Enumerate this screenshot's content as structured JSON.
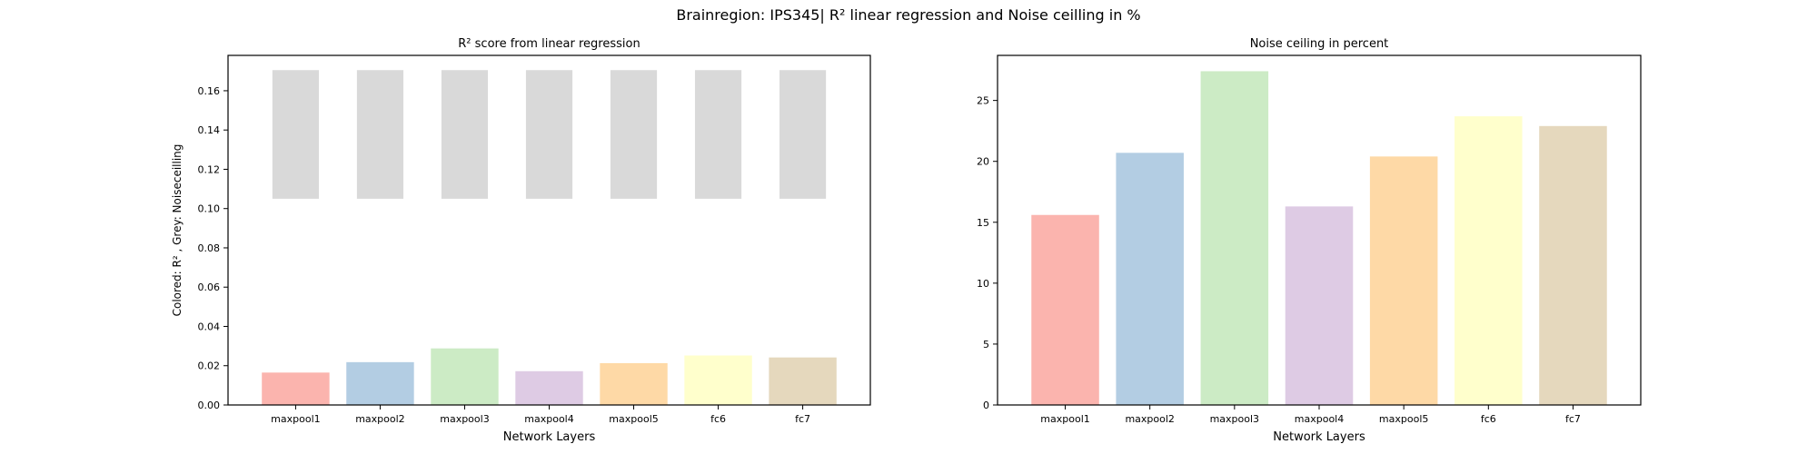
{
  "figure": {
    "suptitle": "Brainregion: IPS345| R² linear regression and Noise ceilling in %"
  },
  "chart_data": [
    {
      "type": "bar",
      "title": "R² score from linear regression",
      "xlabel": "Network Layers",
      "ylabel": "Colored: R² , Grey: Noiseceilling",
      "categories": [
        "maxpool1",
        "maxpool2",
        "maxpool3",
        "maxpool4",
        "maxpool5",
        "fc6",
        "fc7"
      ],
      "ylim": [
        0,
        0.178
      ],
      "yticks": [
        0.0,
        0.02,
        0.04,
        0.06,
        0.08,
        0.1,
        0.12,
        0.14,
        0.16
      ],
      "ytick_labels": [
        "0.00",
        "0.02",
        "0.04",
        "0.06",
        "0.08",
        "0.10",
        "0.12",
        "0.14",
        "0.16"
      ],
      "series": [
        {
          "values": [
            0.0165,
            0.0218,
            0.0288,
            0.0172,
            0.0213,
            0.0252,
            0.0242
          ]
        }
      ],
      "noise_ceiling": {
        "lower": [
          0.105,
          0.105,
          0.105,
          0.105,
          0.105,
          0.105,
          0.105
        ],
        "upper": [
          0.1705,
          0.1705,
          0.1705,
          0.1705,
          0.1705,
          0.1705,
          0.1705
        ]
      },
      "colors": [
        "#fbb4ae",
        "#b3cde3",
        "#ccebc5",
        "#decbe4",
        "#fed9a6",
        "#ffffcc",
        "#e5d8bd"
      ],
      "noise_color": "#d9d9d9",
      "grid": false
    },
    {
      "type": "bar",
      "title": "Noise ceiling in percent",
      "xlabel": "Network Layers",
      "ylabel": "",
      "categories": [
        "maxpool1",
        "maxpool2",
        "maxpool3",
        "maxpool4",
        "maxpool5",
        "fc6",
        "fc7"
      ],
      "ylim": [
        0,
        28.7
      ],
      "yticks": [
        0,
        5,
        10,
        15,
        20,
        25
      ],
      "ytick_labels": [
        "0",
        "5",
        "10",
        "15",
        "20",
        "25"
      ],
      "series": [
        {
          "values": [
            15.6,
            20.7,
            27.4,
            16.3,
            20.4,
            23.7,
            22.9
          ]
        }
      ],
      "colors": [
        "#fbb4ae",
        "#b3cde3",
        "#ccebc5",
        "#decbe4",
        "#fed9a6",
        "#ffffcc",
        "#e5d8bd"
      ],
      "grid": false
    }
  ]
}
